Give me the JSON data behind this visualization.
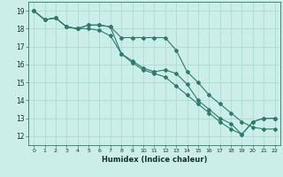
{
  "xlabel": "Humidex (Indice chaleur)",
  "ylabel": "",
  "background_color": "#cceee8",
  "grid_color": "#aaddcc",
  "line_color": "#2d7a6e",
  "xlim": [
    -0.5,
    22.5
  ],
  "ylim": [
    11.5,
    19.5
  ],
  "yticks": [
    12,
    13,
    14,
    15,
    16,
    17,
    18,
    19
  ],
  "xticks": [
    0,
    1,
    2,
    3,
    4,
    5,
    6,
    7,
    8,
    9,
    10,
    11,
    12,
    13,
    14,
    15,
    16,
    17,
    18,
    19,
    20,
    21,
    22
  ],
  "series1_x": [
    0,
    1,
    2,
    3,
    4,
    5,
    6,
    7,
    8,
    9,
    10,
    11,
    12,
    13,
    14,
    15,
    16,
    17,
    18,
    19,
    20,
    21,
    22
  ],
  "series1_y": [
    19.0,
    18.5,
    18.6,
    18.1,
    18.0,
    18.2,
    18.2,
    18.1,
    17.5,
    17.5,
    17.5,
    17.5,
    17.5,
    16.8,
    15.6,
    15.0,
    14.3,
    13.8,
    13.3,
    12.8,
    12.5,
    12.4,
    12.4
  ],
  "series2_x": [
    0,
    1,
    2,
    3,
    4,
    5,
    6,
    7,
    8,
    9,
    10,
    11,
    12,
    13,
    14,
    15,
    16,
    17,
    18,
    19,
    20,
    21,
    22
  ],
  "series2_y": [
    19.0,
    18.5,
    18.6,
    18.1,
    18.0,
    18.2,
    18.2,
    18.1,
    16.6,
    16.2,
    15.8,
    15.6,
    15.7,
    15.5,
    14.9,
    14.0,
    13.5,
    13.0,
    12.7,
    12.1,
    12.8,
    13.0,
    13.0
  ],
  "series3_x": [
    0,
    1,
    2,
    3,
    4,
    5,
    6,
    7,
    8,
    9,
    10,
    11,
    12,
    13,
    14,
    15,
    16,
    17,
    18,
    19,
    20,
    21,
    22
  ],
  "series3_y": [
    19.0,
    18.5,
    18.6,
    18.1,
    18.0,
    18.0,
    17.9,
    17.6,
    16.6,
    16.1,
    15.7,
    15.5,
    15.3,
    14.8,
    14.3,
    13.8,
    13.3,
    12.8,
    12.4,
    12.1,
    12.8,
    13.0,
    13.0
  ]
}
